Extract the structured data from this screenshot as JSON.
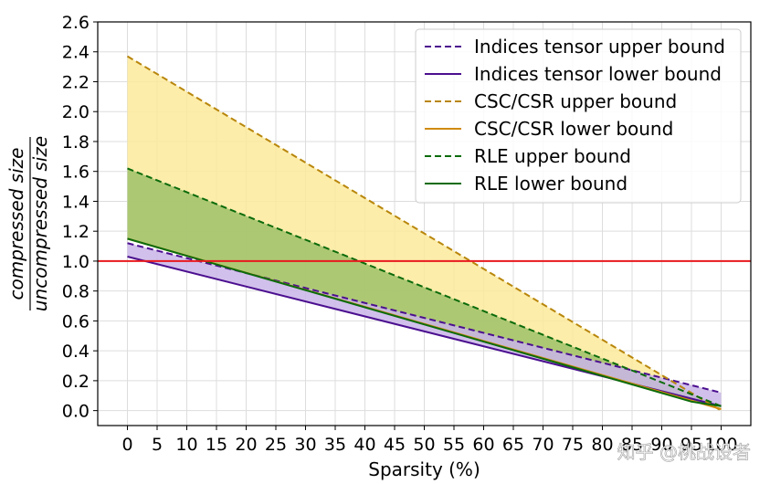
{
  "chart_data": {
    "type": "line",
    "title": "",
    "xlabel": "Sparsity (%)",
    "ylabel_numerator": "compressed size",
    "ylabel_denominator": "uncompressed size",
    "xlim": [
      -5,
      105
    ],
    "ylim": [
      -0.1,
      2.6
    ],
    "x_ticks": [
      0,
      5,
      10,
      15,
      20,
      25,
      30,
      35,
      40,
      45,
      50,
      55,
      60,
      65,
      70,
      75,
      80,
      85,
      90,
      95,
      100
    ],
    "x_tick_labels": [
      "0",
      "5",
      "10",
      "15",
      "20",
      "25",
      "30",
      "35",
      "40",
      "45",
      "50",
      "55",
      "60",
      "65",
      "70",
      "75",
      "80",
      "85",
      "90",
      "95",
      "100"
    ],
    "y_ticks": [
      0.0,
      0.2,
      0.4,
      0.6,
      0.8,
      1.0,
      1.2,
      1.4,
      1.6,
      1.8,
      2.0,
      2.2,
      2.4,
      2.6
    ],
    "y_tick_labels": [
      "0.0",
      "0.2",
      "0.4",
      "0.6",
      "0.8",
      "1.0",
      "1.2",
      "1.4",
      "1.6",
      "1.8",
      "2.0",
      "2.2",
      "2.4",
      "2.6"
    ],
    "grid": true,
    "reference_line": {
      "y": 1.0,
      "color": "#e8191e"
    },
    "legend_position": "top-right",
    "series": [
      {
        "name": "Indices tensor upper bound",
        "color": "#4b0f8f",
        "dash": true,
        "x": [
          0,
          100
        ],
        "y": [
          1.12,
          0.12
        ]
      },
      {
        "name": "Indices tensor lower bound",
        "color": "#4b0f8f",
        "dash": false,
        "x": [
          0,
          100
        ],
        "y": [
          1.03,
          0.03
        ]
      },
      {
        "name": "CSC/CSR upper bound",
        "color": "#b8860b",
        "dash": true,
        "x": [
          0,
          100
        ],
        "y": [
          2.37,
          0.0
        ]
      },
      {
        "name": "CSC/CSR lower bound",
        "color": "#d08a0c",
        "dash": false,
        "x": [
          0,
          100
        ],
        "y": [
          1.15,
          0.01
        ]
      },
      {
        "name": "RLE upper bound",
        "color": "#0b6b0b",
        "dash": true,
        "x": [
          0,
          100
        ],
        "y": [
          1.62,
          0.03
        ]
      },
      {
        "name": "RLE lower bound",
        "color": "#0b6b0b",
        "dash": false,
        "x": [
          0,
          95,
          100
        ],
        "y": [
          1.15,
          0.06,
          0.03
        ]
      }
    ],
    "bands": [
      {
        "name": "CSC/CSR region",
        "upper": "CSC/CSR upper bound",
        "lower": "CSC/CSR lower bound",
        "color": "#fdea9b"
      },
      {
        "name": "RLE region",
        "upper": "RLE upper bound",
        "lower": "RLE lower bound",
        "color": "#9fc16a"
      },
      {
        "name": "Indices tensor region",
        "upper": "Indices tensor upper bound",
        "lower": "Indices tensor lower bound",
        "color": "#c9b5e8"
      }
    ]
  },
  "watermark": "知乎 @桃战设者"
}
